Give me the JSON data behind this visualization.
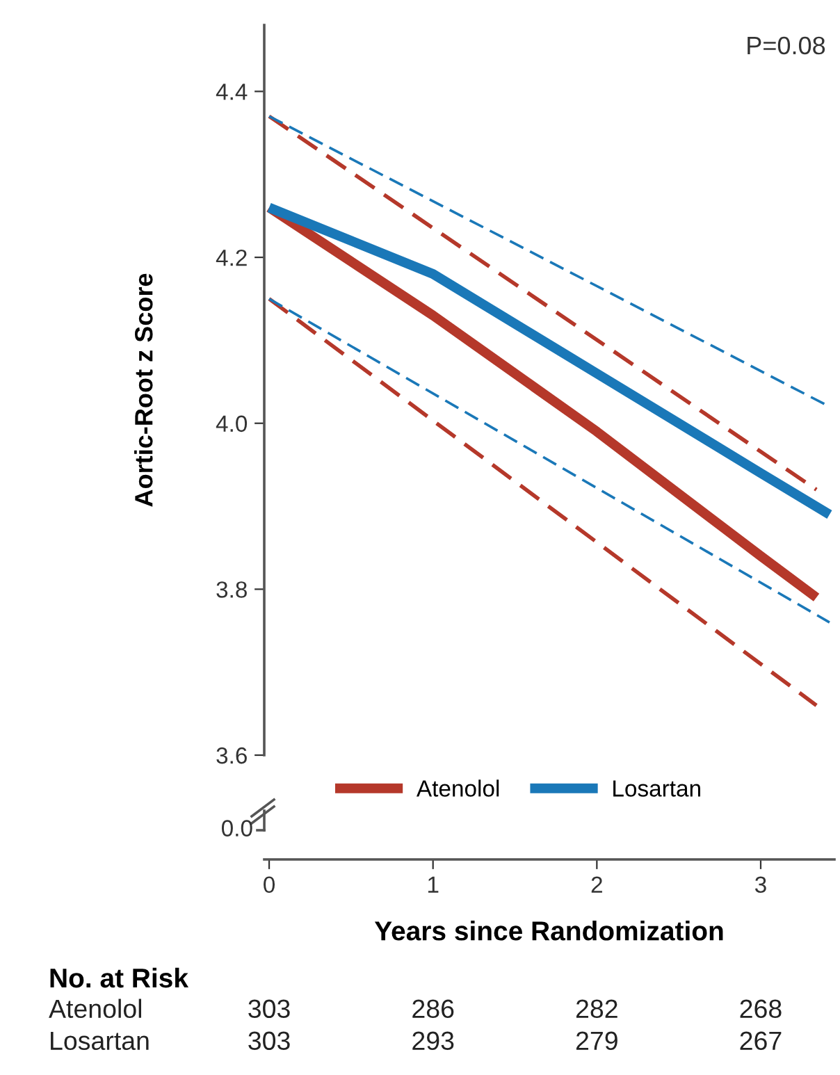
{
  "chart_data": {
    "type": "line",
    "ylabel": "Aortic-Root z Score",
    "xlabel": "Years since Randomization",
    "xlim": [
      -0.03,
      3.45
    ],
    "xticks": [
      0,
      1,
      2,
      3
    ],
    "ylim": [
      3.6,
      4.48
    ],
    "yticks": [
      {
        "value": 3.6,
        "label": "3.6"
      },
      {
        "value": 3.8,
        "label": "3.8"
      },
      {
        "value": 4.0,
        "label": "4.0"
      },
      {
        "value": 4.2,
        "label": "4.2"
      },
      {
        "value": 4.4,
        "label": "4.4"
      }
    ],
    "legend": "bottom",
    "grid": false,
    "annotations": [
      "P=0.08",
      "0.0",
      "No. at Risk",
      "Atenolol",
      "303",
      "286",
      "282",
      "268",
      "Losartan",
      "303",
      "293",
      "279",
      "267"
    ],
    "series": [
      {
        "name": "Atenolol",
        "color": "#b5382a",
        "x": [
          0,
          1,
          2,
          3,
          3.34
        ],
        "values": [
          4.26,
          4.13,
          3.99,
          3.84,
          3.79
        ]
      },
      {
        "name": "Losartan",
        "color": "#1a78b8",
        "x": [
          0,
          1,
          2,
          3,
          3.42
        ],
        "values": [
          4.26,
          4.18,
          4.06,
          3.94,
          3.89
        ]
      },
      {
        "color": "#b5382a",
        "line_style": "dashed",
        "x": [
          0,
          3.34
        ],
        "values": [
          4.37,
          3.92
        ]
      },
      {
        "color": "#b5382a",
        "line_style": "dashed",
        "x": [
          0,
          3.34
        ],
        "values": [
          4.15,
          3.66
        ]
      },
      {
        "color": "#1a78b8",
        "line_style": "dashed",
        "x": [
          0,
          3.42
        ],
        "values": [
          4.37,
          4.02
        ]
      },
      {
        "color": "#1a78b8",
        "line_style": "dashed",
        "x": [
          0,
          3.42
        ],
        "values": [
          4.15,
          3.76
        ]
      }
    ]
  }
}
